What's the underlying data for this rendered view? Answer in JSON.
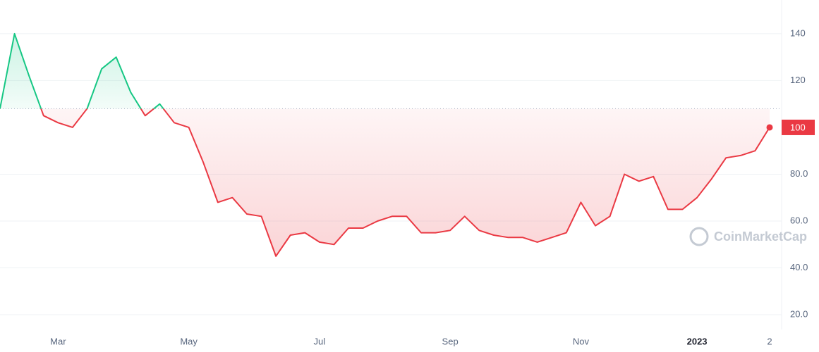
{
  "chart_data": {
    "type": "line",
    "categories": [
      null,
      null,
      null,
      null,
      "Mar",
      null,
      null,
      null,
      null,
      null,
      null,
      null,
      null,
      "May",
      null,
      null,
      null,
      null,
      null,
      null,
      null,
      null,
      "Jul",
      null,
      null,
      null,
      null,
      null,
      null,
      null,
      null,
      "Sep",
      null,
      null,
      null,
      null,
      null,
      null,
      null,
      null,
      "Nov",
      null,
      null,
      null,
      null,
      null,
      null,
      null,
      "2023",
      null,
      null,
      null,
      null,
      "2"
    ],
    "series": [
      {
        "values": [
          108,
          140,
          122,
          105,
          102,
          100,
          108,
          125,
          130,
          115,
          105,
          110,
          102,
          100,
          85,
          68,
          70,
          63,
          62,
          45,
          54,
          55,
          51,
          50,
          57,
          57,
          60,
          62,
          62,
          55,
          55,
          56,
          62,
          56,
          54,
          53,
          53,
          51,
          53,
          55,
          68,
          58,
          62,
          80,
          77,
          79,
          65,
          65,
          70,
          78,
          87,
          88,
          90,
          100
        ]
      }
    ],
    "baseline": 108,
    "up_color": "#16c784",
    "down_color": "#ea3943",
    "current_price": {
      "value": 100,
      "label": "100"
    },
    "ylim": [
      13.7,
      154.4
    ],
    "yticks": [
      {
        "value": 20,
        "label": "20.0"
      },
      {
        "value": 40,
        "label": "40.0"
      },
      {
        "value": 60,
        "label": "60.0"
      },
      {
        "value": 80,
        "label": "80.0"
      },
      120,
      140
    ],
    "grid": true,
    "watermark": "CoinMarketCap"
  }
}
